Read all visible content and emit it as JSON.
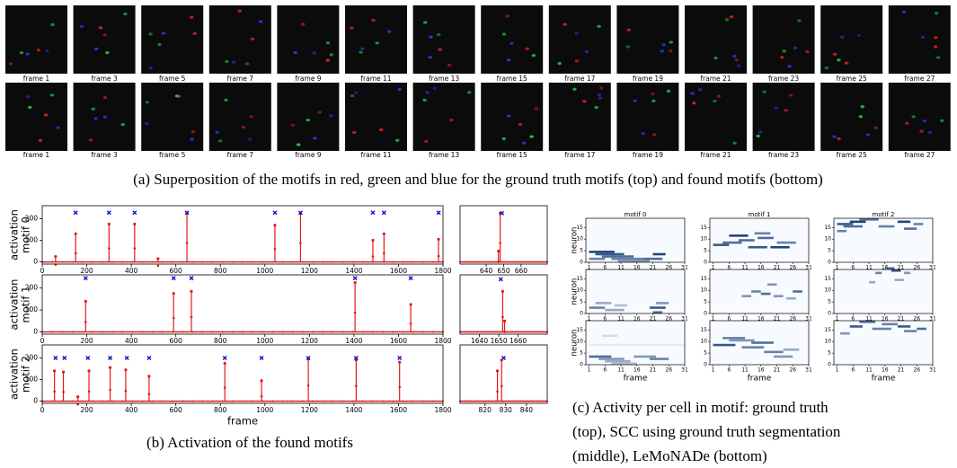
{
  "frames": {
    "labels": [
      "frame 1",
      "frame 3",
      "frame 5",
      "frame 7",
      "frame 9",
      "frame 11",
      "frame 13",
      "frame 15",
      "frame 17",
      "frame 19",
      "frame 21",
      "frame 23",
      "frame 25",
      "frame 27"
    ]
  },
  "caption_a": "(a) Superposition of the motifs in red, green and blue for the ground truth motifs (top) and found motifs (bottom)",
  "caption_b": "(b) Activation of the found motifs",
  "caption_c": [
    "(c) Activity per cell in motif: ground truth",
    "(top), SCC using ground truth segmentation",
    "(middle), LeMoNADe (bottom)"
  ],
  "chart_data": [
    {
      "type": "stem",
      "ylabel": [
        "activation",
        "motif 0"
      ],
      "xlim": [
        0,
        1800
      ],
      "xticks": [
        0,
        200,
        400,
        600,
        800,
        1000,
        1200,
        1400,
        1600,
        1800
      ],
      "ylim": [
        -10,
        260
      ],
      "yticks": [
        0,
        100,
        200
      ],
      "series": [
        {
          "color": "#e31a1c",
          "x": [
            60,
            150,
            300,
            415,
            520,
            650,
            1045,
            1160,
            1485,
            1535,
            1780
          ],
          "values": [
            25,
            130,
            175,
            175,
            15,
            225,
            170,
            225,
            100,
            130,
            105
          ]
        }
      ],
      "markers": {
        "color": "#1010d0",
        "x": [
          150,
          300,
          415,
          650,
          1045,
          1160,
          1485,
          1535,
          1780
        ],
        "values": [
          228,
          228,
          228,
          228,
          228,
          228,
          228,
          228,
          228
        ]
      }
    },
    {
      "type": "stem",
      "ylabel": [
        "activation",
        "motif 1"
      ],
      "xlim": [
        0,
        1800
      ],
      "xticks": [
        0,
        200,
        400,
        600,
        800,
        1000,
        1200,
        1400,
        1600,
        1800
      ],
      "ylim": [
        -10,
        260
      ],
      "yticks": [
        0,
        100,
        200
      ],
      "series": [
        {
          "color": "#e31a1c",
          "x": [
            195,
            590,
            670,
            1405,
            1655
          ],
          "values": [
            140,
            175,
            185,
            225,
            125
          ]
        }
      ],
      "markers": {
        "color": "#1010d0",
        "x": [
          195,
          590,
          670,
          1405,
          1655
        ],
        "values": [
          245,
          245,
          245,
          245,
          245
        ]
      }
    },
    {
      "type": "stem",
      "ylabel": [
        "activation",
        "motif 2"
      ],
      "xlabel": "frame",
      "xlim": [
        0,
        1800
      ],
      "xticks": [
        0,
        200,
        400,
        600,
        800,
        1000,
        1200,
        1400,
        1600,
        1800
      ],
      "ylim": [
        -10,
        260
      ],
      "yticks": [
        0,
        100,
        200
      ],
      "series": [
        {
          "color": "#e31a1c",
          "x": [
            55,
            95,
            160,
            210,
            305,
            375,
            480,
            820,
            985,
            1195,
            1410,
            1605
          ],
          "values": [
            140,
            135,
            20,
            140,
            155,
            145,
            115,
            175,
            95,
            195,
            190,
            180
          ]
        }
      ],
      "markers": {
        "color": "#1010d0",
        "x": [
          60,
          100,
          205,
          305,
          380,
          480,
          820,
          985,
          1195,
          1410,
          1605
        ],
        "values": [
          200,
          200,
          200,
          200,
          200,
          200,
          200,
          200,
          200,
          200,
          200
        ]
      }
    },
    {
      "type": "stem",
      "xlim": [
        625,
        675
      ],
      "xticks": [
        640,
        650,
        660
      ],
      "ylim": [
        -10,
        260
      ],
      "yticks": [],
      "series": [
        {
          "color": "#e31a1c",
          "x": [
            647,
            648
          ],
          "values": [
            50,
            225
          ]
        }
      ],
      "markers": {
        "color": "#1010d0",
        "x": [
          649
        ],
        "values": [
          225
        ]
      }
    },
    {
      "type": "stem",
      "xlim": [
        1630,
        1675
      ],
      "xticks": [
        1640,
        1650,
        1660
      ],
      "ylim": [
        -10,
        260
      ],
      "yticks": [],
      "series": [
        {
          "color": "#e31a1c",
          "x": [
            1652,
            1653
          ],
          "values": [
            185,
            50
          ]
        }
      ],
      "markers": {
        "color": "#1010d0",
        "x": [
          1651
        ],
        "values": [
          240
        ]
      }
    },
    {
      "type": "stem",
      "xlim": [
        808,
        850
      ],
      "xticks": [
        820,
        830,
        840
      ],
      "ylim": [
        -10,
        260
      ],
      "yticks": [],
      "series": [
        {
          "color": "#e31a1c",
          "x": [
            826,
            828
          ],
          "values": [
            140,
            190
          ]
        }
      ],
      "markers": {
        "color": "#1010d0",
        "x": [
          829
        ],
        "values": [
          200
        ]
      }
    },
    {
      "type": "heatmap",
      "title": "motif 0",
      "ylabel": "neuron",
      "xlim": [
        0,
        31
      ],
      "xticks": [
        1,
        6,
        11,
        16,
        21,
        26,
        31
      ],
      "ylim": [
        0,
        19
      ],
      "yticks": [
        0,
        5,
        10,
        15
      ],
      "cells": [
        [
          1,
          9,
          4,
          0.9
        ],
        [
          3,
          12,
          3,
          0.8
        ],
        [
          5,
          15,
          2,
          0.7
        ],
        [
          8,
          18,
          1,
          0.6
        ],
        [
          10,
          20,
          0,
          0.5
        ],
        [
          21,
          25,
          3,
          0.9
        ],
        [
          18,
          24,
          1,
          0.7
        ],
        [
          1,
          6,
          1,
          0.6
        ]
      ]
    },
    {
      "type": "heatmap",
      "title": "motif 1",
      "xlim": [
        0,
        31
      ],
      "xticks": [
        1,
        6,
        11,
        16,
        21,
        26,
        31
      ],
      "ylim": [
        0,
        19
      ],
      "yticks": [
        0,
        5,
        10,
        15
      ],
      "cells": [
        [
          1,
          6,
          7,
          0.8
        ],
        [
          4,
          10,
          8,
          0.7
        ],
        [
          6,
          12,
          11,
          0.9
        ],
        [
          9,
          14,
          9,
          0.7
        ],
        [
          12,
          18,
          6,
          0.8
        ],
        [
          15,
          20,
          10,
          0.7
        ],
        [
          19,
          25,
          6,
          0.9
        ],
        [
          21,
          27,
          8,
          0.6
        ],
        [
          14,
          19,
          12,
          0.6
        ]
      ]
    },
    {
      "type": "heatmap",
      "title": "motif 2",
      "xlim": [
        0,
        31
      ],
      "xticks": [
        1,
        6,
        11,
        16,
        21,
        26,
        31
      ],
      "ylim": [
        0,
        19
      ],
      "yticks": [
        0,
        5,
        10,
        15
      ],
      "cells": [
        [
          1,
          6,
          16,
          0.8
        ],
        [
          3,
          9,
          15,
          0.7
        ],
        [
          5,
          10,
          17,
          0.9
        ],
        [
          8,
          14,
          18,
          0.7
        ],
        [
          14,
          19,
          15,
          0.6
        ],
        [
          20,
          24,
          17,
          0.9
        ],
        [
          22,
          26,
          14,
          0.7
        ],
        [
          25,
          28,
          16,
          0.6
        ],
        [
          1,
          4,
          13,
          0.6
        ]
      ]
    },
    {
      "type": "heatmap",
      "ylabel": "neuron",
      "xlim": [
        0,
        31
      ],
      "xticks": [
        1,
        6,
        11,
        16,
        21,
        26,
        31
      ],
      "ylim": [
        0,
        19
      ],
      "yticks": [
        0,
        5,
        10,
        15
      ],
      "cells": [
        [
          1,
          6,
          2,
          0.6
        ],
        [
          3,
          8,
          4,
          0.4
        ],
        [
          6,
          12,
          1,
          0.4
        ],
        [
          9,
          13,
          3,
          0.3
        ],
        [
          20,
          25,
          2,
          0.8
        ],
        [
          21,
          24,
          0,
          0.7
        ],
        [
          22,
          26,
          4,
          0.5
        ]
      ]
    },
    {
      "type": "heatmap",
      "xlim": [
        0,
        31
      ],
      "xticks": [
        1,
        6,
        11,
        16,
        21,
        26,
        31
      ],
      "ylim": [
        0,
        19
      ],
      "yticks": [
        0,
        5,
        10,
        15
      ],
      "cells": [
        [
          10,
          13,
          7,
          0.5
        ],
        [
          13,
          16,
          9,
          0.6
        ],
        [
          16,
          19,
          8,
          0.7
        ],
        [
          18,
          21,
          12,
          0.5
        ],
        [
          20,
          23,
          7,
          0.5
        ],
        [
          26,
          29,
          9,
          0.7
        ],
        [
          24,
          27,
          6,
          0.4
        ]
      ]
    },
    {
      "type": "heatmap",
      "xlim": [
        0,
        31
      ],
      "xticks": [
        1,
        6,
        11,
        16,
        21,
        26,
        31
      ],
      "ylim": [
        0,
        19
      ],
      "yticks": [
        0,
        5,
        10,
        15
      ],
      "cells": [
        [
          11,
          13,
          13,
          0.4
        ],
        [
          13,
          15,
          17,
          0.6
        ],
        [
          16,
          19,
          19,
          0.7
        ],
        [
          18,
          21,
          18,
          0.8
        ],
        [
          19,
          22,
          14,
          0.4
        ],
        [
          22,
          24,
          17,
          0.5
        ]
      ]
    },
    {
      "type": "heatmap",
      "ylabel": "neuron",
      "xlabel": "frame",
      "xlim": [
        0,
        31
      ],
      "xticks": [
        1,
        6,
        11,
        16,
        21,
        26,
        31
      ],
      "ylim": [
        0,
        19
      ],
      "yticks": [
        0,
        5,
        10,
        15
      ],
      "cells": [
        [
          1,
          8,
          3,
          0.7
        ],
        [
          4,
          12,
          2,
          0.5
        ],
        [
          6,
          14,
          1,
          0.4
        ],
        [
          8,
          16,
          0,
          0.3
        ],
        [
          15,
          22,
          3,
          0.5
        ],
        [
          20,
          26,
          2,
          0.6
        ],
        [
          5,
          10,
          12,
          0.15
        ],
        [
          1,
          31,
          8,
          0.08
        ]
      ]
    },
    {
      "type": "heatmap",
      "xlabel": "frame",
      "xlim": [
        0,
        31
      ],
      "xticks": [
        1,
        6,
        11,
        16,
        21,
        26,
        31
      ],
      "ylim": [
        0,
        19
      ],
      "yticks": [
        0,
        5,
        10,
        15
      ],
      "cells": [
        [
          1,
          8,
          8,
          0.8
        ],
        [
          4,
          11,
          11,
          0.6
        ],
        [
          6,
          14,
          10,
          0.5
        ],
        [
          10,
          17,
          7,
          0.6
        ],
        [
          13,
          20,
          9,
          0.7
        ],
        [
          17,
          23,
          5,
          0.6
        ],
        [
          20,
          26,
          3,
          0.5
        ],
        [
          23,
          28,
          6,
          0.4
        ]
      ]
    },
    {
      "type": "heatmap",
      "xlabel": "frame",
      "xlim": [
        0,
        31
      ],
      "xticks": [
        1,
        6,
        11,
        16,
        21,
        26,
        31
      ],
      "ylim": [
        0,
        19
      ],
      "yticks": [
        0,
        5,
        10,
        15
      ],
      "cells": [
        [
          5,
          9,
          16,
          0.8
        ],
        [
          8,
          13,
          18,
          0.7
        ],
        [
          12,
          18,
          15,
          0.6
        ],
        [
          15,
          20,
          17,
          0.6
        ],
        [
          20,
          24,
          16,
          0.8
        ],
        [
          22,
          26,
          14,
          0.6
        ],
        [
          26,
          29,
          15,
          0.7
        ],
        [
          2,
          5,
          13,
          0.5
        ]
      ]
    }
  ]
}
